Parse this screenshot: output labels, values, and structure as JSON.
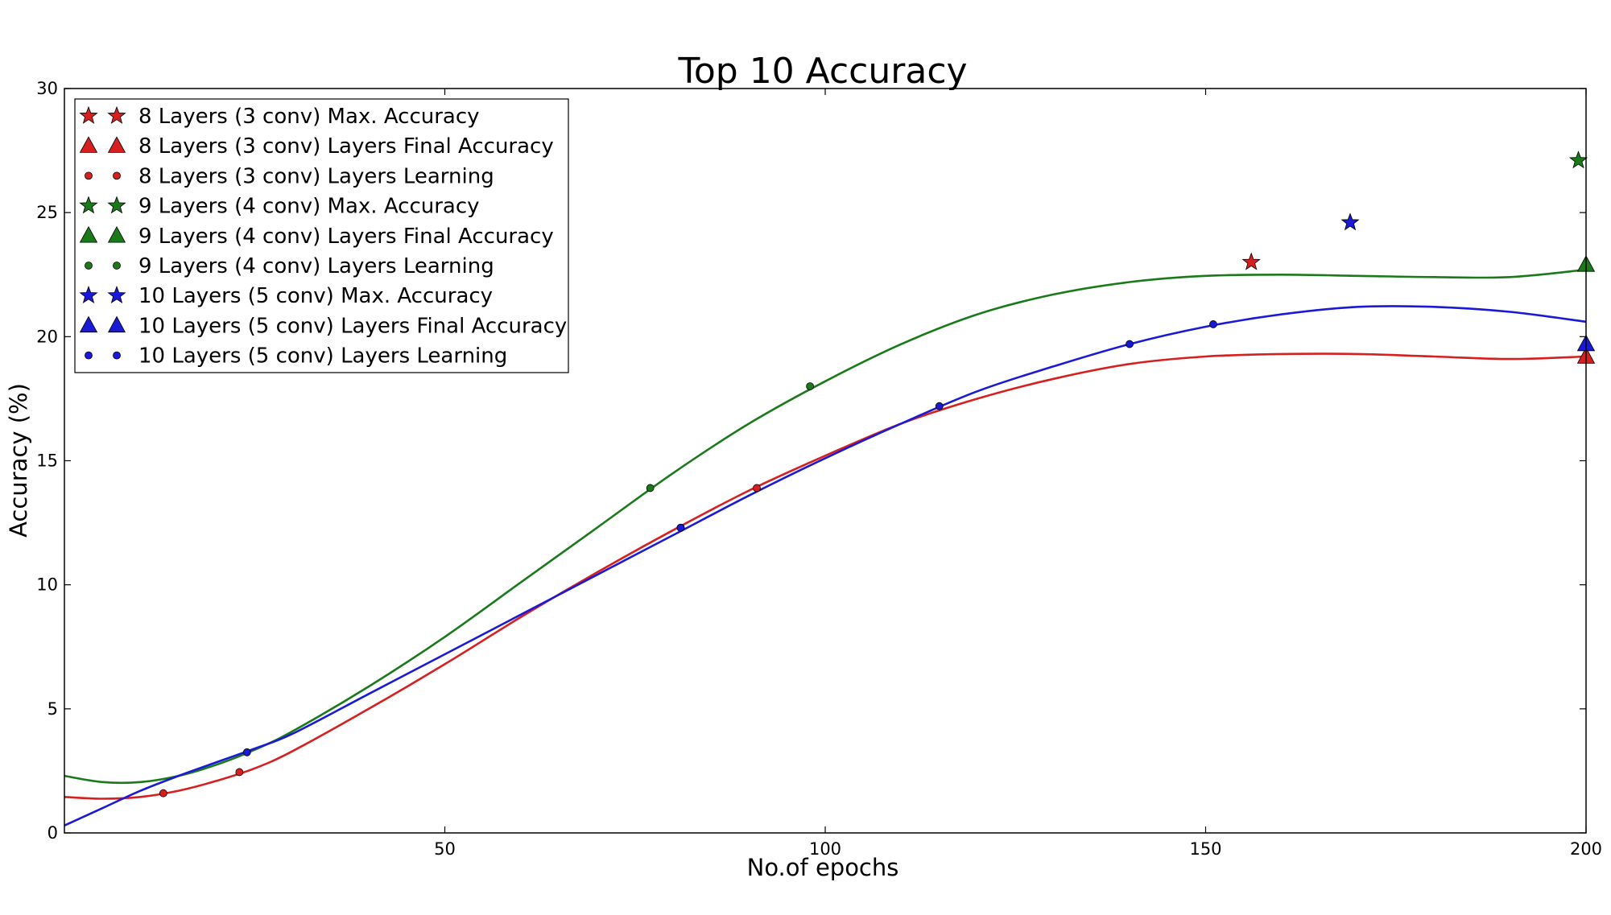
{
  "chart_data": {
    "type": "line",
    "title": "Top 10 Accuracy",
    "xlabel": "No.of epochs",
    "ylabel": "Accuracy (%)",
    "xlim": [
      0,
      200
    ],
    "ylim": [
      0,
      30
    ],
    "xticks": [
      50,
      100,
      150,
      200
    ],
    "yticks": [
      0,
      5,
      10,
      15,
      20,
      25,
      30
    ],
    "grid": false,
    "legend_position": "top-left",
    "series": [
      {
        "name": "8 Layers (3 conv)",
        "color": "#d62020",
        "learning_points": [
          [
            13,
            1.6
          ],
          [
            23,
            2.45
          ],
          [
            81,
            12.3
          ],
          [
            91,
            13.9
          ]
        ],
        "max_accuracy": [
          156,
          23.0
        ],
        "final_accuracy": [
          200,
          19.2
        ],
        "fit_curve": [
          [
            0,
            1.45
          ],
          [
            5,
            1.38
          ],
          [
            10,
            1.45
          ],
          [
            15,
            1.7
          ],
          [
            20,
            2.1
          ],
          [
            25,
            2.6
          ],
          [
            30,
            3.3
          ],
          [
            40,
            5.0
          ],
          [
            50,
            6.8
          ],
          [
            60,
            8.7
          ],
          [
            70,
            10.5
          ],
          [
            80,
            12.2
          ],
          [
            90,
            13.8
          ],
          [
            100,
            15.2
          ],
          [
            110,
            16.5
          ],
          [
            120,
            17.5
          ],
          [
            130,
            18.3
          ],
          [
            140,
            18.9
          ],
          [
            150,
            19.2
          ],
          [
            160,
            19.3
          ],
          [
            170,
            19.3
          ],
          [
            180,
            19.2
          ],
          [
            190,
            19.1
          ],
          [
            200,
            19.2
          ]
        ]
      },
      {
        "name": "9 Layers (4 conv)",
        "color": "#1a7a1a",
        "learning_points": [
          [
            77,
            13.9
          ],
          [
            98,
            18.0
          ]
        ],
        "max_accuracy": [
          199,
          27.1
        ],
        "final_accuracy": [
          200,
          22.9
        ],
        "fit_curve": [
          [
            0,
            2.3
          ],
          [
            5,
            2.05
          ],
          [
            10,
            2.05
          ],
          [
            15,
            2.3
          ],
          [
            20,
            2.75
          ],
          [
            25,
            3.35
          ],
          [
            30,
            4.1
          ],
          [
            40,
            5.9
          ],
          [
            50,
            7.9
          ],
          [
            60,
            10.1
          ],
          [
            70,
            12.3
          ],
          [
            80,
            14.5
          ],
          [
            90,
            16.5
          ],
          [
            100,
            18.2
          ],
          [
            110,
            19.7
          ],
          [
            120,
            20.9
          ],
          [
            130,
            21.7
          ],
          [
            140,
            22.2
          ],
          [
            150,
            22.45
          ],
          [
            160,
            22.5
          ],
          [
            170,
            22.45
          ],
          [
            180,
            22.4
          ],
          [
            190,
            22.4
          ],
          [
            200,
            22.7
          ]
        ]
      },
      {
        "name": "10 Layers (5 conv)",
        "color": "#1a1ad6",
        "learning_points": [
          [
            24,
            3.25
          ],
          [
            81,
            12.3
          ],
          [
            115,
            17.2
          ],
          [
            140,
            19.7
          ],
          [
            151,
            20.5
          ]
        ],
        "max_accuracy": [
          169,
          24.6
        ],
        "final_accuracy": [
          200,
          19.7
        ],
        "fit_curve": [
          [
            0,
            0.3
          ],
          [
            5,
            1.0
          ],
          [
            10,
            1.7
          ],
          [
            15,
            2.3
          ],
          [
            20,
            2.85
          ],
          [
            25,
            3.4
          ],
          [
            30,
            4.0
          ],
          [
            40,
            5.6
          ],
          [
            50,
            7.2
          ],
          [
            60,
            8.8
          ],
          [
            70,
            10.4
          ],
          [
            80,
            12.0
          ],
          [
            90,
            13.6
          ],
          [
            100,
            15.1
          ],
          [
            110,
            16.5
          ],
          [
            120,
            17.8
          ],
          [
            130,
            18.8
          ],
          [
            140,
            19.7
          ],
          [
            150,
            20.4
          ],
          [
            160,
            20.9
          ],
          [
            170,
            21.2
          ],
          [
            180,
            21.2
          ],
          [
            190,
            21.0
          ],
          [
            200,
            20.6
          ]
        ]
      }
    ],
    "legend": [
      {
        "label": "8 Layers (3 conv) Max. Accuracy",
        "marker": "star",
        "color": "#d62020"
      },
      {
        "label": "8 Layers (3 conv) Layers Final Accuracy",
        "marker": "triangle",
        "color": "#d62020"
      },
      {
        "label": "8 Layers (3 conv) Layers Learning",
        "marker": "dot",
        "color": "#d62020"
      },
      {
        "label": "9 Layers (4 conv) Max. Accuracy",
        "marker": "star",
        "color": "#1a7a1a"
      },
      {
        "label": "9 Layers (4 conv) Layers Final Accuracy",
        "marker": "triangle",
        "color": "#1a7a1a"
      },
      {
        "label": "9 Layers (4 conv) Layers Learning",
        "marker": "dot",
        "color": "#1a7a1a"
      },
      {
        "label": "10 Layers (5 conv) Max. Accuracy",
        "marker": "star",
        "color": "#1a1ad6"
      },
      {
        "label": "10 Layers (5 conv) Layers Final Accuracy",
        "marker": "triangle",
        "color": "#1a1ad6"
      },
      {
        "label": "10 Layers (5 conv) Layers Learning",
        "marker": "dot",
        "color": "#1a1ad6"
      }
    ]
  }
}
